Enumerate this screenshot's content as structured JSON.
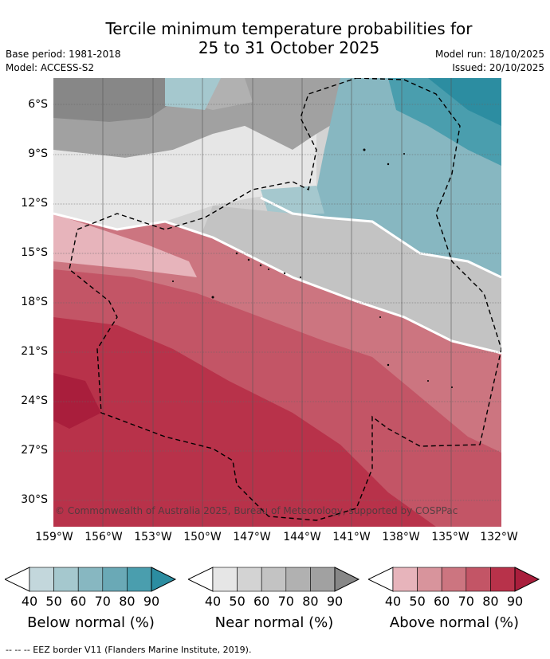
{
  "title_line1": "Tercile minimum temperature probabilities for",
  "title_line2": "25 to 31 October 2025",
  "base_period": "Base period: 1981-2018",
  "model": "Model: ACCESS-S2",
  "model_run": "Model run: 18/10/2025",
  "issued": "Issued: 20/10/2025",
  "lat_labels": [
    "6°S",
    "9°S",
    "12°S",
    "15°S",
    "18°S",
    "21°S",
    "24°S",
    "27°S",
    "30°S"
  ],
  "lon_labels": [
    "159°W",
    "156°W",
    "153°W",
    "150°W",
    "147°W",
    "144°W",
    "141°W",
    "138°W",
    "135°W",
    "132°W"
  ],
  "copyright": "© Commonwealth of Australia 2025, Bureau of Meteorology, supported by COSPPac",
  "colorbars": [
    {
      "label": "Below normal (%)",
      "ticks": [
        "40",
        "50",
        "60",
        "70",
        "80",
        "90"
      ],
      "colors": [
        "#c3d7dc",
        "#a5c8ce",
        "#87b7c1",
        "#6aa9b6",
        "#4a9eae",
        "#2c8da1"
      ]
    },
    {
      "label": "Near normal (%)",
      "ticks": [
        "40",
        "50",
        "60",
        "70",
        "80",
        "90"
      ],
      "colors": [
        "#e6e6e6",
        "#d3d3d3",
        "#c3c3c3",
        "#b1b1b1",
        "#a1a1a1",
        "#878787"
      ]
    },
    {
      "label": "Above normal (%)",
      "ticks": [
        "40",
        "50",
        "60",
        "70",
        "80",
        "90"
      ],
      "colors": [
        "#e7b4bb",
        "#d8949c",
        "#cc7580",
        "#c35566",
        "#b8324a",
        "#a91e3c"
      ]
    }
  ],
  "footnote": "--  --  -- EEZ border V11 (Flanders Marine Institute, 2019)."
}
